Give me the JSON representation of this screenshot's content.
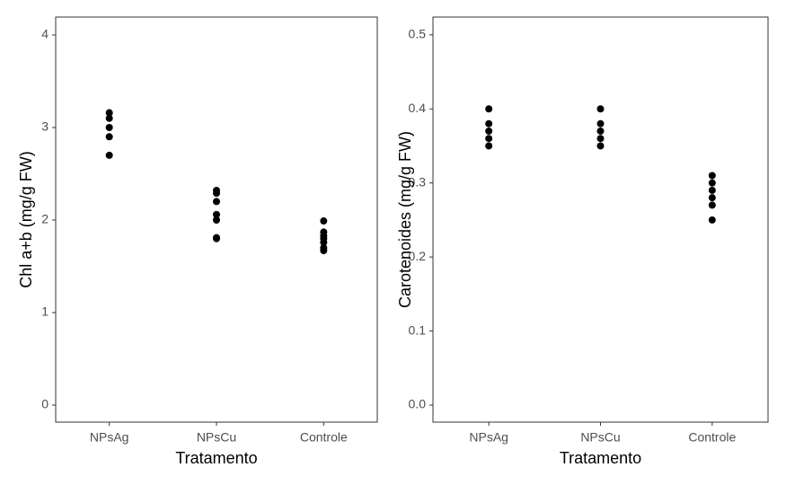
{
  "chart_data": [
    {
      "type": "strip",
      "xlabel": "Tratamento",
      "ylabel": "Chl a+b (mg/g FW)",
      "categories": [
        "NPsAg",
        "NPsCu",
        "Controle"
      ],
      "values": [
        [
          3.16,
          3.1,
          3.0,
          2.9,
          2.7
        ],
        [
          2.32,
          2.29,
          2.2,
          2.06,
          2.0,
          1.81,
          1.8
        ],
        [
          1.99,
          1.87,
          1.83,
          1.8,
          1.76,
          1.7,
          1.67
        ]
      ],
      "color": "#000000",
      "ylim": [
        -0.184,
        4.194
      ],
      "yticks": [
        0,
        1,
        2,
        3,
        4
      ],
      "grid": false
    },
    {
      "type": "strip",
      "xlabel": "Tratamento",
      "ylabel": "Carotenoides (mg/g FW)",
      "categories": [
        "NPsAg",
        "NPsCu",
        "Controle"
      ],
      "values": [
        [
          0.4,
          0.38,
          0.37,
          0.36,
          0.35
        ],
        [
          0.4,
          0.38,
          0.37,
          0.36,
          0.35
        ],
        [
          0.31,
          0.3,
          0.29,
          0.28,
          0.27,
          0.25
        ]
      ],
      "color": "#000000",
      "ylim": [
        -0.023,
        0.524
      ],
      "yticks": [
        {
          "value": 0,
          "label": "0.0"
        },
        {
          "value": 0.1,
          "label": "0.1"
        },
        {
          "value": 0.2,
          "label": "0.2"
        },
        {
          "value": 0.3,
          "label": "0.3"
        },
        {
          "value": 0.4,
          "label": "0.4"
        },
        {
          "value": 0.5,
          "label": "0.5"
        }
      ],
      "grid": false
    }
  ]
}
